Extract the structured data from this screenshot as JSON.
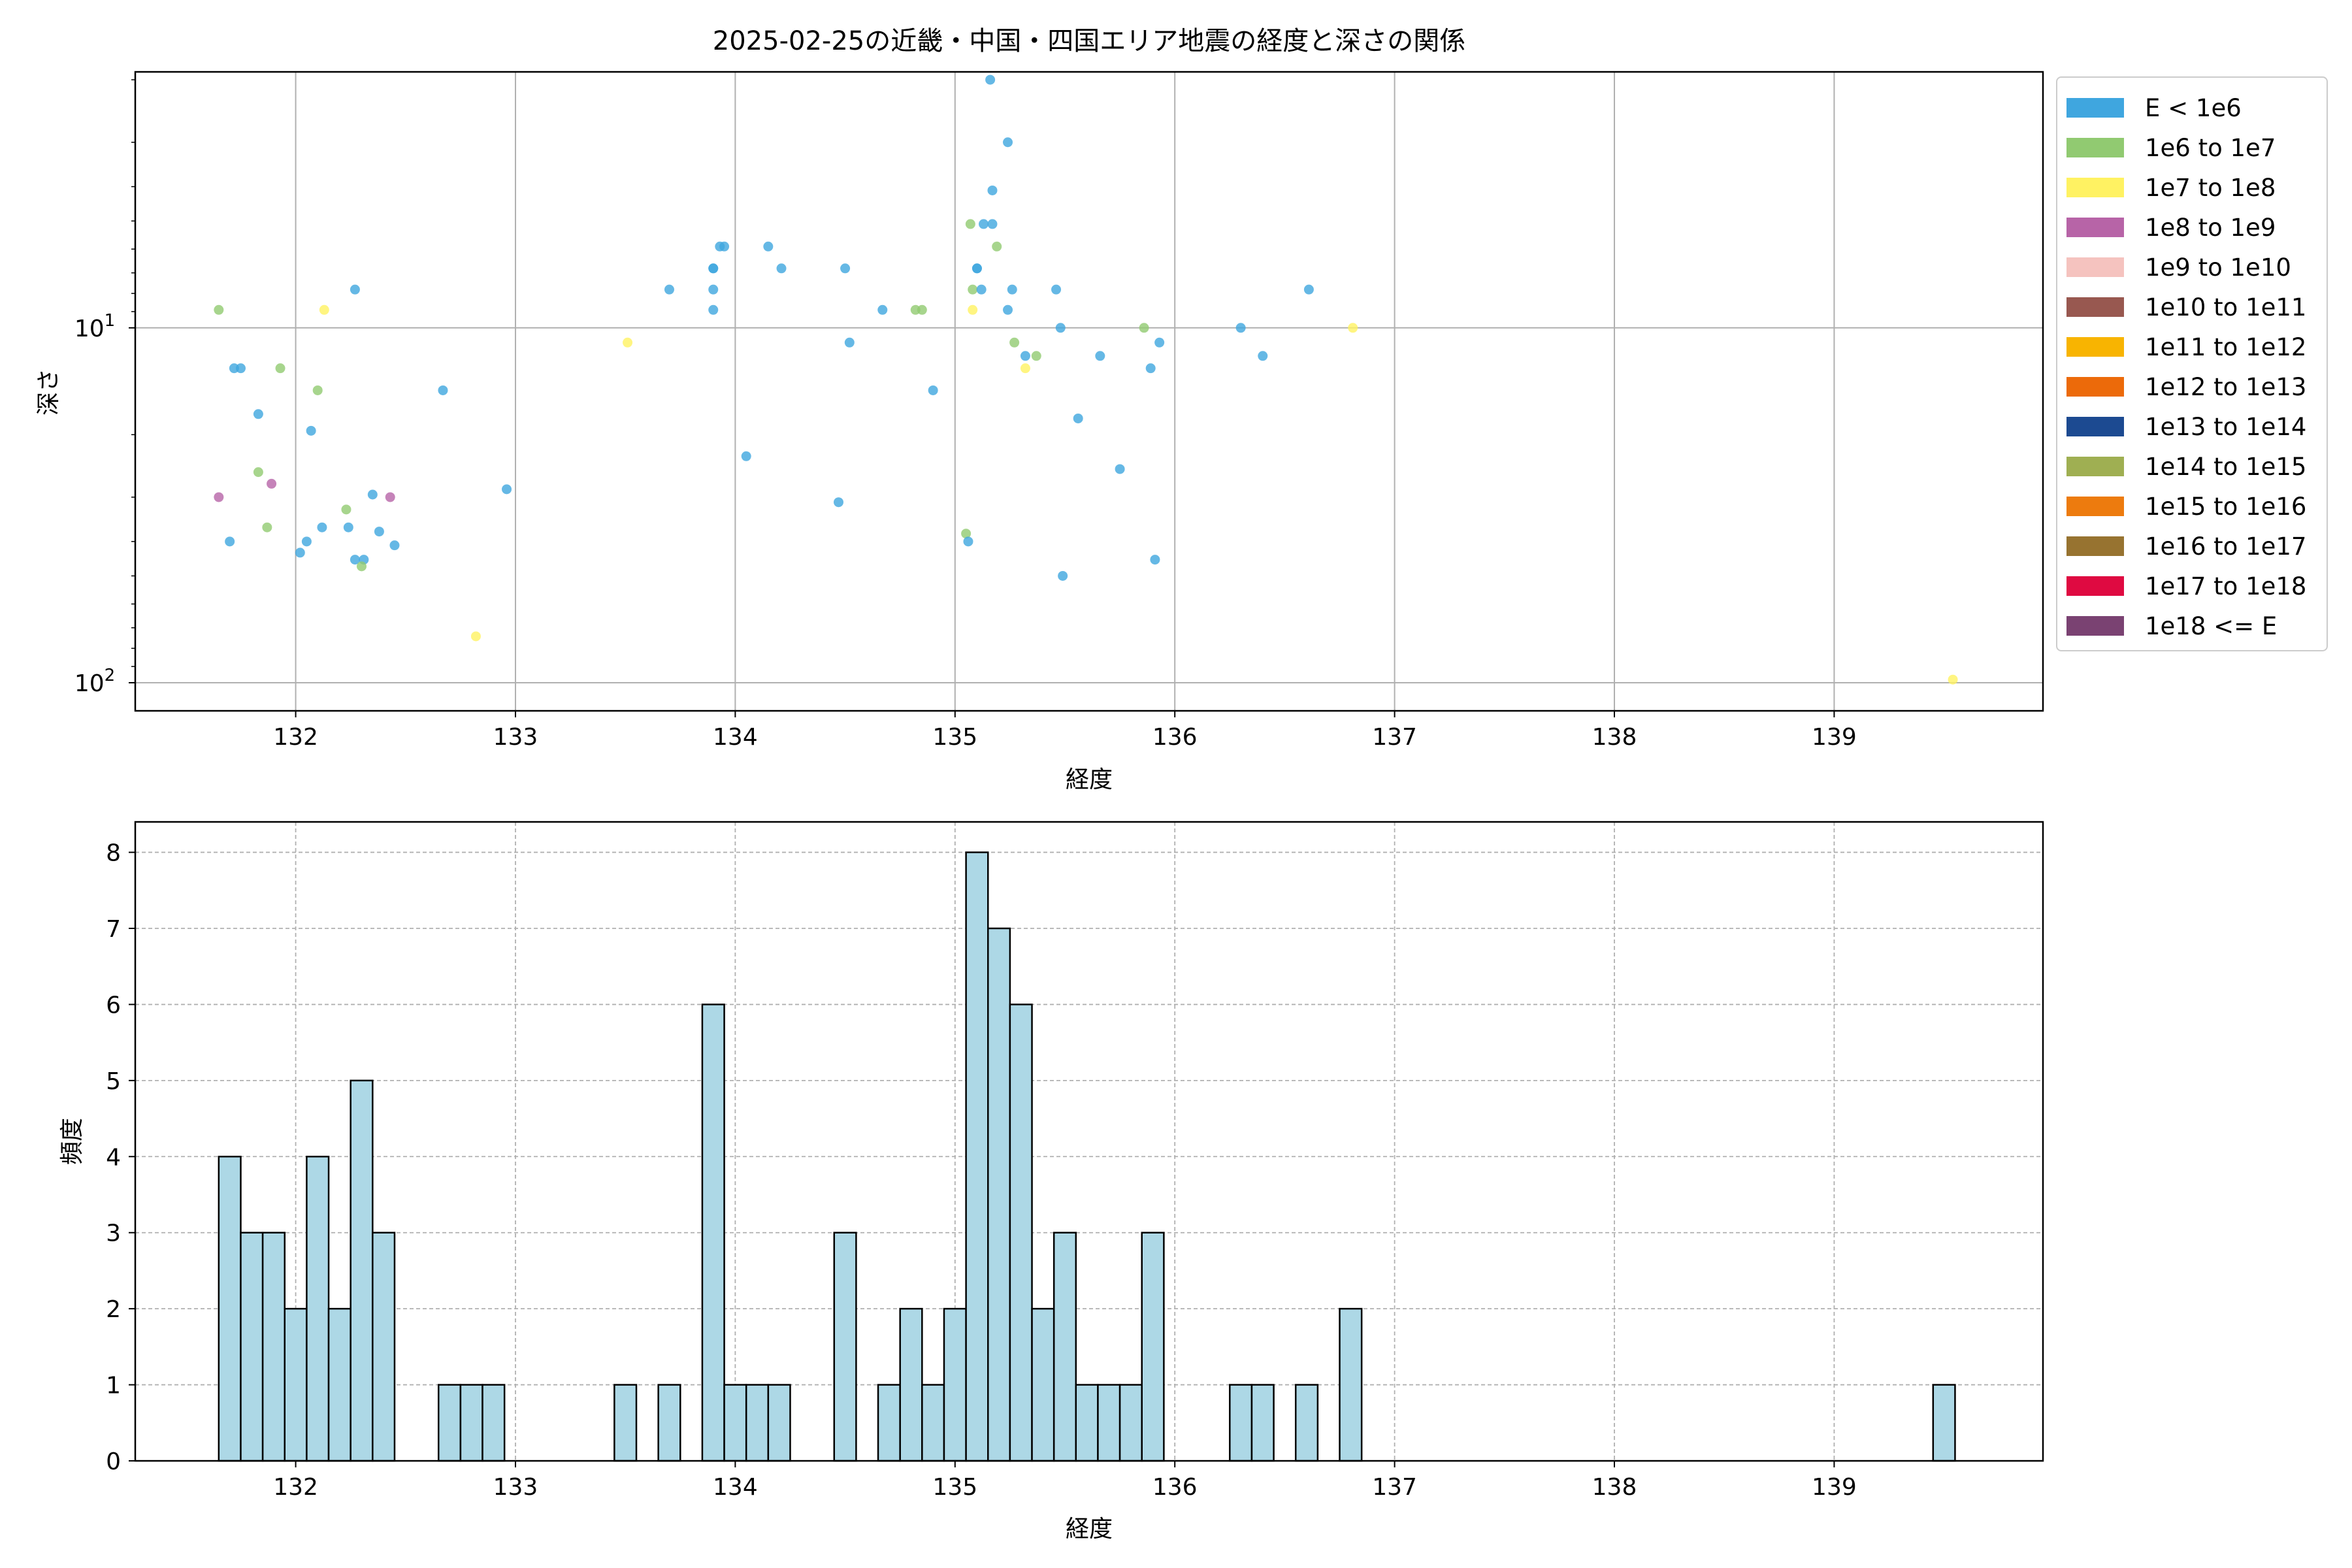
{
  "chart_data": [
    {
      "type": "scatter",
      "title": "2025-02-25の近畿・中国・四国エリア地震の経度と深さの関係",
      "xlabel": "経度",
      "ylabel": "深さ",
      "x_ticks": [
        "132",
        "133",
        "134",
        "135",
        "136",
        "137",
        "138",
        "139"
      ],
      "y_ticks": [
        {
          "base": "10",
          "exp": "1",
          "value": 10
        },
        {
          "base": "10",
          "exp": "2",
          "value": 100
        }
      ],
      "xlim": [
        131.27,
        139.95
      ],
      "ylim_inverted_log": [
        1.9,
        120
      ],
      "grid": true,
      "legend_position": "outside-right",
      "legend": [
        {
          "label": "E < 1e6",
          "color": "#3fa6df"
        },
        {
          "label": "1e6 to 1e7",
          "color": "#91ca71"
        },
        {
          "label": "1e7 to 1e8",
          "color": "#fff262"
        },
        {
          "label": "1e8 to 1e9",
          "color": "#b764a7"
        },
        {
          "label": "1e9 to 1e10",
          "color": "#f5c3bf"
        },
        {
          "label": "1e10 to 1e11",
          "color": "#985850"
        },
        {
          "label": "1e11 to 1e12",
          "color": "#f8b401"
        },
        {
          "label": "1e12 to 1e13",
          "color": "#ec6a0a"
        },
        {
          "label": "1e13 to 1e14",
          "color": "#1c4a91"
        },
        {
          "label": "1e14 to 1e15",
          "color": "#9faf52"
        },
        {
          "label": "1e15 to 1e16",
          "color": "#ed7b0e"
        },
        {
          "label": "1e16 to 1e17",
          "color": "#977330"
        },
        {
          "label": "1e17 to 1e18",
          "color": "#df0a41"
        },
        {
          "label": "1e18 <= E",
          "color": "#7a4272"
        }
      ],
      "points": [
        {
          "x": 131.65,
          "y": 8.9,
          "c": 1
        },
        {
          "x": 131.65,
          "y": 30,
          "c": 3
        },
        {
          "x": 131.7,
          "y": 40,
          "c": 0
        },
        {
          "x": 131.72,
          "y": 13,
          "c": 0
        },
        {
          "x": 131.75,
          "y": 13,
          "c": 0
        },
        {
          "x": 131.83,
          "y": 17.5,
          "c": 0
        },
        {
          "x": 131.83,
          "y": 25.5,
          "c": 1
        },
        {
          "x": 131.87,
          "y": 36.5,
          "c": 1
        },
        {
          "x": 131.89,
          "y": 27.5,
          "c": 3
        },
        {
          "x": 131.93,
          "y": 13,
          "c": 1
        },
        {
          "x": 132.02,
          "y": 43,
          "c": 0
        },
        {
          "x": 132.05,
          "y": 40,
          "c": 0
        },
        {
          "x": 132.07,
          "y": 19.5,
          "c": 0
        },
        {
          "x": 132.1,
          "y": 15,
          "c": 1
        },
        {
          "x": 132.12,
          "y": 36.5,
          "c": 0
        },
        {
          "x": 132.13,
          "y": 8.9,
          "c": 2
        },
        {
          "x": 132.23,
          "y": 32.5,
          "c": 1
        },
        {
          "x": 132.24,
          "y": 36.5,
          "c": 0
        },
        {
          "x": 132.27,
          "y": 7.8,
          "c": 0
        },
        {
          "x": 132.27,
          "y": 45,
          "c": 0
        },
        {
          "x": 132.31,
          "y": 45,
          "c": 0
        },
        {
          "x": 132.3,
          "y": 47,
          "c": 1
        },
        {
          "x": 132.35,
          "y": 29.5,
          "c": 0
        },
        {
          "x": 132.38,
          "y": 37.5,
          "c": 0
        },
        {
          "x": 132.43,
          "y": 30,
          "c": 3
        },
        {
          "x": 132.45,
          "y": 41,
          "c": 0
        },
        {
          "x": 132.67,
          "y": 15,
          "c": 0
        },
        {
          "x": 132.82,
          "y": 74,
          "c": 2
        },
        {
          "x": 132.96,
          "y": 28.5,
          "c": 0
        },
        {
          "x": 133.51,
          "y": 11,
          "c": 2
        },
        {
          "x": 133.7,
          "y": 7.8,
          "c": 0
        },
        {
          "x": 133.9,
          "y": 6.8,
          "c": 0
        },
        {
          "x": 133.9,
          "y": 6.8,
          "c": 0
        },
        {
          "x": 133.9,
          "y": 7.8,
          "c": 0
        },
        {
          "x": 133.9,
          "y": 8.9,
          "c": 0
        },
        {
          "x": 133.93,
          "y": 5.9,
          "c": 0
        },
        {
          "x": 133.95,
          "y": 5.9,
          "c": 0
        },
        {
          "x": 134.05,
          "y": 23,
          "c": 0
        },
        {
          "x": 134.15,
          "y": 5.9,
          "c": 0
        },
        {
          "x": 134.21,
          "y": 6.8,
          "c": 0
        },
        {
          "x": 134.47,
          "y": 31,
          "c": 0
        },
        {
          "x": 134.5,
          "y": 6.8,
          "c": 0
        },
        {
          "x": 134.52,
          "y": 11,
          "c": 0
        },
        {
          "x": 134.67,
          "y": 8.9,
          "c": 0
        },
        {
          "x": 134.82,
          "y": 8.9,
          "c": 1
        },
        {
          "x": 134.85,
          "y": 8.9,
          "c": 1
        },
        {
          "x": 134.9,
          "y": 15,
          "c": 0
        },
        {
          "x": 135.05,
          "y": 38,
          "c": 1
        },
        {
          "x": 135.06,
          "y": 40,
          "c": 0
        },
        {
          "x": 135.07,
          "y": 5.1,
          "c": 1
        },
        {
          "x": 135.08,
          "y": 7.8,
          "c": 1
        },
        {
          "x": 135.08,
          "y": 8.9,
          "c": 2
        },
        {
          "x": 135.1,
          "y": 6.8,
          "c": 0
        },
        {
          "x": 135.1,
          "y": 6.8,
          "c": 0
        },
        {
          "x": 135.12,
          "y": 7.8,
          "c": 0
        },
        {
          "x": 135.13,
          "y": 5.1,
          "c": 0
        },
        {
          "x": 135.16,
          "y": 2.0,
          "c": 0
        },
        {
          "x": 135.17,
          "y": 4.1,
          "c": 0
        },
        {
          "x": 135.17,
          "y": 5.1,
          "c": 0
        },
        {
          "x": 135.19,
          "y": 5.9,
          "c": 1
        },
        {
          "x": 135.24,
          "y": 3.0,
          "c": 0
        },
        {
          "x": 135.24,
          "y": 8.9,
          "c": 0
        },
        {
          "x": 135.26,
          "y": 7.8,
          "c": 0
        },
        {
          "x": 135.27,
          "y": 11,
          "c": 1
        },
        {
          "x": 135.32,
          "y": 12,
          "c": 0
        },
        {
          "x": 135.32,
          "y": 13,
          "c": 2
        },
        {
          "x": 135.37,
          "y": 12,
          "c": 1
        },
        {
          "x": 135.46,
          "y": 7.8,
          "c": 0
        },
        {
          "x": 135.48,
          "y": 10,
          "c": 0
        },
        {
          "x": 135.49,
          "y": 50,
          "c": 0
        },
        {
          "x": 135.56,
          "y": 18,
          "c": 0
        },
        {
          "x": 135.66,
          "y": 12,
          "c": 0
        },
        {
          "x": 135.75,
          "y": 25,
          "c": 0
        },
        {
          "x": 135.86,
          "y": 10,
          "c": 1
        },
        {
          "x": 135.89,
          "y": 13,
          "c": 0
        },
        {
          "x": 135.91,
          "y": 45,
          "c": 0
        },
        {
          "x": 135.93,
          "y": 11,
          "c": 0
        },
        {
          "x": 136.3,
          "y": 10,
          "c": 0
        },
        {
          "x": 136.4,
          "y": 12,
          "c": 0
        },
        {
          "x": 136.61,
          "y": 7.8,
          "c": 0
        },
        {
          "x": 136.81,
          "y": 10,
          "c": 2
        },
        {
          "x": 139.54,
          "y": 98,
          "c": 2
        }
      ]
    },
    {
      "type": "bar",
      "title": "",
      "xlabel": "経度",
      "ylabel": "頻度",
      "x_ticks": [
        "132",
        "133",
        "134",
        "135",
        "136",
        "137",
        "138",
        "139"
      ],
      "y_ticks": [
        "0",
        "1",
        "2",
        "3",
        "4",
        "5",
        "6",
        "7",
        "8"
      ],
      "xlim": [
        131.27,
        139.95
      ],
      "ylim": [
        0,
        8.4
      ],
      "grid": true,
      "bar_color": "#add8e6",
      "bin_width": 0.1,
      "bins": [
        {
          "x0": 131.65,
          "count": 4
        },
        {
          "x0": 131.75,
          "count": 3
        },
        {
          "x0": 131.85,
          "count": 3
        },
        {
          "x0": 131.95,
          "count": 2
        },
        {
          "x0": 132.05,
          "count": 4
        },
        {
          "x0": 132.15,
          "count": 2
        },
        {
          "x0": 132.25,
          "count": 5
        },
        {
          "x0": 132.35,
          "count": 3
        },
        {
          "x0": 132.65,
          "count": 1
        },
        {
          "x0": 132.75,
          "count": 1
        },
        {
          "x0": 132.85,
          "count": 1
        },
        {
          "x0": 133.45,
          "count": 1
        },
        {
          "x0": 133.65,
          "count": 1
        },
        {
          "x0": 133.85,
          "count": 6
        },
        {
          "x0": 133.95,
          "count": 1
        },
        {
          "x0": 134.05,
          "count": 1
        },
        {
          "x0": 134.15,
          "count": 1
        },
        {
          "x0": 134.45,
          "count": 3
        },
        {
          "x0": 134.65,
          "count": 1
        },
        {
          "x0": 134.75,
          "count": 2
        },
        {
          "x0": 134.85,
          "count": 1
        },
        {
          "x0": 134.95,
          "count": 2
        },
        {
          "x0": 135.05,
          "count": 8
        },
        {
          "x0": 135.15,
          "count": 7
        },
        {
          "x0": 135.25,
          "count": 6
        },
        {
          "x0": 135.35,
          "count": 2
        },
        {
          "x0": 135.45,
          "count": 3
        },
        {
          "x0": 135.55,
          "count": 1
        },
        {
          "x0": 135.65,
          "count": 1
        },
        {
          "x0": 135.75,
          "count": 1
        },
        {
          "x0": 135.85,
          "count": 3
        },
        {
          "x0": 136.25,
          "count": 1
        },
        {
          "x0": 136.35,
          "count": 1
        },
        {
          "x0": 136.55,
          "count": 1
        },
        {
          "x0": 136.75,
          "count": 2
        },
        {
          "x0": 139.45,
          "count": 1
        }
      ]
    }
  ]
}
